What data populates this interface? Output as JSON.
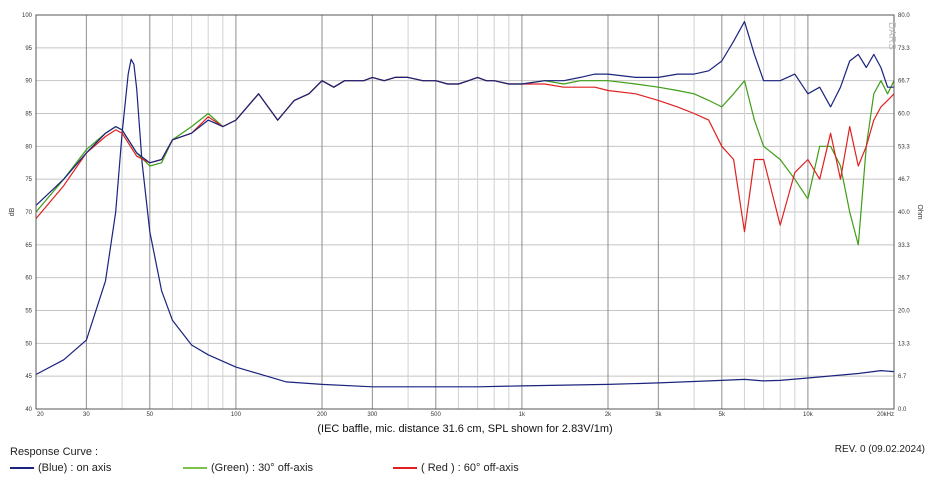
{
  "chart_data": {
    "type": "line",
    "title": "",
    "xlabel": "(IEC baffle, mic. distance 31.6 cm, SPL shown for 2.83V/1m)",
    "ylabel": "dB",
    "y2label": "Ohm",
    "xscale": "log",
    "xlim": [
      20,
      20000
    ],
    "ylim": [
      40,
      100
    ],
    "y2lim": [
      0,
      80
    ],
    "grid": true,
    "watermark": "DARS",
    "x_major_ticks": [
      20,
      30,
      50,
      100,
      200,
      300,
      500,
      1000,
      2000,
      3000,
      5000,
      10000,
      20000
    ],
    "x_tick_labels": [
      "20",
      "30",
      "50",
      "100",
      "200",
      "300",
      "500",
      "1k",
      "2k",
      "3k",
      "5k",
      "10k",
      "20kHz"
    ],
    "x_minor_ticks": [
      40,
      60,
      70,
      80,
      90,
      400,
      600,
      700,
      800,
      900,
      4000,
      6000,
      7000,
      8000,
      9000
    ],
    "y_ticks": [
      40,
      45,
      50,
      55,
      60,
      65,
      70,
      75,
      80,
      85,
      90,
      95,
      100
    ],
    "y_tick_labels": [
      "40",
      "45",
      "50",
      "55",
      "60",
      "65",
      "70",
      "75",
      "80",
      "85",
      "90",
      "95",
      "100"
    ],
    "y2_ticks": [
      0,
      6.7,
      13.3,
      20,
      26.7,
      33.3,
      40,
      46.7,
      53.3,
      60,
      66.7,
      73.3,
      80
    ],
    "y2_tick_labels": [
      "0.0",
      "6.7",
      "13.3",
      "20.0",
      "26.7",
      "33.3",
      "40.0",
      "46.7",
      "53.3",
      "60.0",
      "66.7",
      "73.3",
      "80.0"
    ],
    "series": [
      {
        "name": "(Blue)  : on axis",
        "color": "#1a237e",
        "axis": "left",
        "x": [
          20,
          25,
          30,
          35,
          38,
          40,
          45,
          50,
          55,
          60,
          70,
          80,
          90,
          100,
          120,
          140,
          160,
          180,
          200,
          220,
          240,
          260,
          280,
          300,
          330,
          360,
          400,
          450,
          500,
          550,
          600,
          650,
          700,
          750,
          800,
          900,
          1000,
          1200,
          1400,
          1600,
          1800,
          2000,
          2500,
          3000,
          3500,
          4000,
          4500,
          5000,
          5500,
          6000,
          6500,
          7000,
          8000,
          9000,
          10000,
          11000,
          12000,
          13000,
          14000,
          15000,
          16000,
          17000,
          18000,
          19000,
          20000
        ],
        "y": [
          71,
          75,
          79,
          82,
          83,
          82.5,
          79,
          77.5,
          78,
          81,
          82,
          84,
          83,
          84,
          88,
          84,
          87,
          88,
          90,
          89,
          90,
          90,
          90,
          90.5,
          90,
          90.5,
          90.5,
          90,
          90,
          89.5,
          89.5,
          90,
          90.5,
          90,
          90,
          89.5,
          89.5,
          90,
          90,
          90.5,
          91,
          91,
          90.5,
          90.5,
          91,
          91,
          91.5,
          93,
          96,
          99,
          94,
          90,
          90,
          91,
          88,
          89,
          86,
          89,
          93,
          94,
          92,
          94,
          92,
          89,
          89
        ]
      },
      {
        "name": "(Green) : 30° off-axis",
        "color": "#3f9d17",
        "axis": "left",
        "x": [
          20,
          25,
          30,
          35,
          38,
          40,
          45,
          50,
          55,
          60,
          70,
          80,
          90,
          100,
          120,
          140,
          160,
          180,
          200,
          220,
          240,
          260,
          280,
          300,
          330,
          360,
          400,
          450,
          500,
          550,
          600,
          650,
          700,
          750,
          800,
          900,
          1000,
          1200,
          1400,
          1600,
          1800,
          2000,
          2500,
          3000,
          3500,
          4000,
          4500,
          5000,
          5500,
          6000,
          6500,
          7000,
          8000,
          9000,
          10000,
          11000,
          12000,
          13000,
          14000,
          15000,
          16000,
          17000,
          18000,
          19000,
          20000
        ],
        "y": [
          70,
          75,
          79.5,
          82,
          83,
          82.5,
          79,
          77,
          77.5,
          81,
          83,
          85,
          83,
          84,
          88,
          84,
          87,
          88,
          90,
          89,
          90,
          90,
          90,
          90.5,
          90,
          90.5,
          90.5,
          90,
          90,
          89.5,
          89.5,
          90,
          90.5,
          90,
          90,
          89.5,
          89.5,
          90,
          89.5,
          90,
          90,
          90,
          89.5,
          89,
          88.5,
          88,
          87,
          86,
          88,
          90,
          84,
          80,
          78,
          75,
          72,
          80,
          80,
          77,
          70,
          65,
          80,
          88,
          90,
          88,
          90
        ]
      },
      {
        "name": "( Red ) : 60° off-axis",
        "color": "#e02020",
        "axis": "left",
        "x": [
          20,
          25,
          30,
          35,
          38,
          40,
          45,
          50,
          55,
          60,
          70,
          80,
          90,
          100,
          120,
          140,
          160,
          180,
          200,
          220,
          240,
          260,
          280,
          300,
          330,
          360,
          400,
          450,
          500,
          550,
          600,
          650,
          700,
          750,
          800,
          900,
          1000,
          1200,
          1400,
          1600,
          1800,
          2000,
          2500,
          3000,
          3500,
          4000,
          4500,
          5000,
          5500,
          6000,
          6500,
          7000,
          8000,
          9000,
          10000,
          11000,
          12000,
          13000,
          14000,
          15000,
          16000,
          17000,
          18000,
          19000,
          20000
        ],
        "y": [
          69,
          74,
          79,
          81.5,
          82.5,
          82,
          78.5,
          77.5,
          78,
          81,
          82,
          84.5,
          83,
          84,
          88,
          84,
          87,
          88,
          90,
          89,
          90,
          90,
          90,
          90.5,
          90,
          90.5,
          90.5,
          90,
          90,
          89.5,
          89.5,
          90,
          90.5,
          90,
          90,
          89.5,
          89.5,
          89.5,
          89,
          89,
          89,
          88.5,
          88,
          87,
          86,
          85,
          84,
          80,
          78,
          67,
          78,
          78,
          68,
          76,
          78,
          75,
          82,
          75,
          83,
          77,
          80,
          84,
          86,
          87,
          88
        ]
      },
      {
        "name": "Impedance",
        "color": "#1a237e",
        "axis": "right",
        "x": [
          20,
          25,
          30,
          35,
          38,
          40,
          42,
          43,
          44,
          45,
          47,
          50,
          55,
          60,
          70,
          80,
          100,
          150,
          200,
          300,
          400,
          500,
          700,
          1000,
          2000,
          3000,
          5000,
          6000,
          7000,
          8000,
          10000,
          15000,
          18000,
          20000
        ],
        "y": [
          7,
          10,
          14,
          26,
          40,
          56,
          68,
          71,
          70,
          65,
          50,
          36,
          24,
          18,
          13,
          11,
          8.5,
          5.5,
          5,
          4.5,
          4.5,
          4.5,
          4.5,
          4.7,
          5,
          5.3,
          5.8,
          6,
          5.7,
          5.8,
          6.3,
          7.2,
          7.8,
          7.6
        ]
      }
    ]
  },
  "footer": {
    "label": "Response Curve :",
    "revision": "REV. 0 (09.02.2024)"
  }
}
